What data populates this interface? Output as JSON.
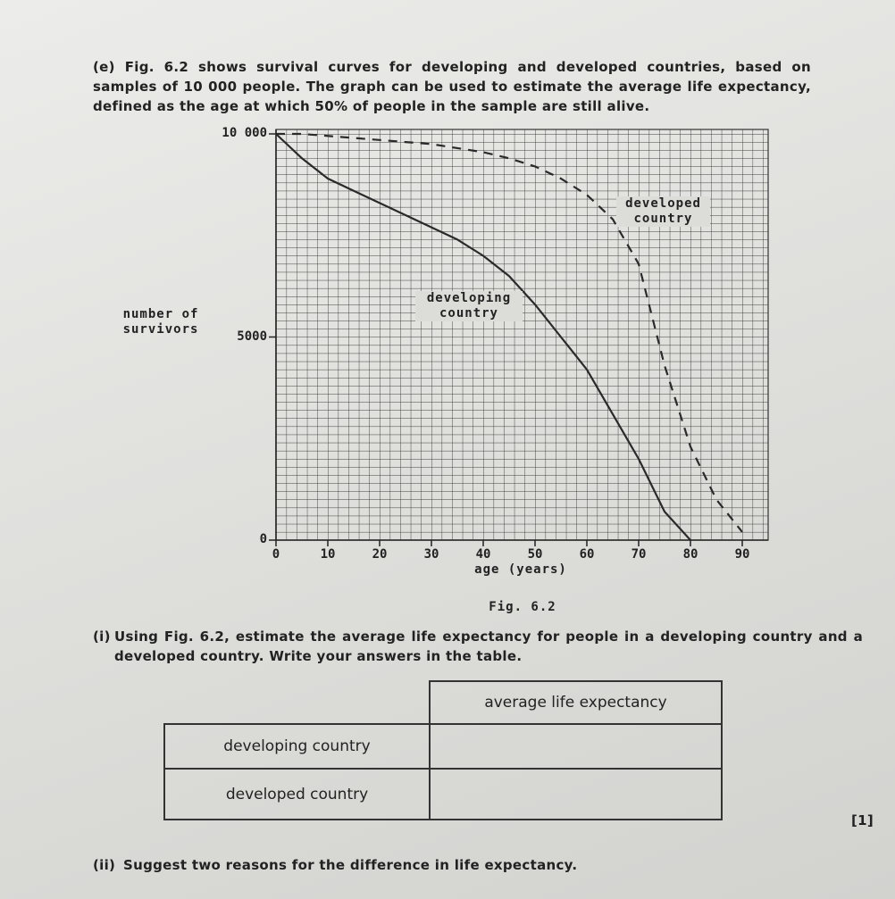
{
  "question": {
    "label": "(e)",
    "text": "Fig. 6.2 shows survival curves for developing and developed countries, based on samples of 10 000 people. The graph can be used to estimate the average life expectancy, defined as the age at which 50% of people in the sample are still alive."
  },
  "chart_data": {
    "type": "line",
    "caption": "Fig. 6.2",
    "x_label": "age (years)",
    "y_label": "number of survivors",
    "x": [
      0,
      5,
      10,
      15,
      20,
      25,
      30,
      35,
      40,
      45,
      50,
      55,
      60,
      65,
      70,
      75,
      80,
      85,
      90
    ],
    "series": [
      {
        "name": "developing country",
        "color": "#2a2a2a",
        "line_style": "solid",
        "values": [
          10000,
          9400,
          8900,
          8600,
          8300,
          8000,
          7700,
          7400,
          7000,
          6500,
          5800,
          5000,
          4200,
          3100,
          2000,
          700,
          0,
          null,
          null
        ]
      },
      {
        "name": "developed country",
        "color": "#2a2a2a",
        "line_style": "dashed",
        "values": [
          10000,
          10000,
          9950,
          9900,
          9850,
          9800,
          9750,
          9650,
          9550,
          9400,
          9200,
          8900,
          8500,
          7900,
          6800,
          4300,
          2300,
          1000,
          200
        ]
      }
    ],
    "xlim": [
      0,
      95
    ],
    "ylim": [
      0,
      10000
    ],
    "xticks": [
      0,
      10,
      20,
      30,
      40,
      50,
      60,
      70,
      80,
      90
    ],
    "yticks": [
      0,
      5000,
      {
        "value": 10000,
        "label": "10 000"
      }
    ],
    "grid": true
  },
  "part_i": {
    "label": "(i)",
    "text": "Using Fig. 6.2, estimate the average life expectancy for people in a developing country and a developed country. Write your answers in the table.",
    "table": {
      "column_header": "average life expectancy",
      "rows": [
        "developing country",
        "developed country"
      ]
    },
    "marks": "[1]"
  },
  "part_ii": {
    "label": "(ii)",
    "text": "Suggest two reasons for the difference in life expectancy."
  }
}
